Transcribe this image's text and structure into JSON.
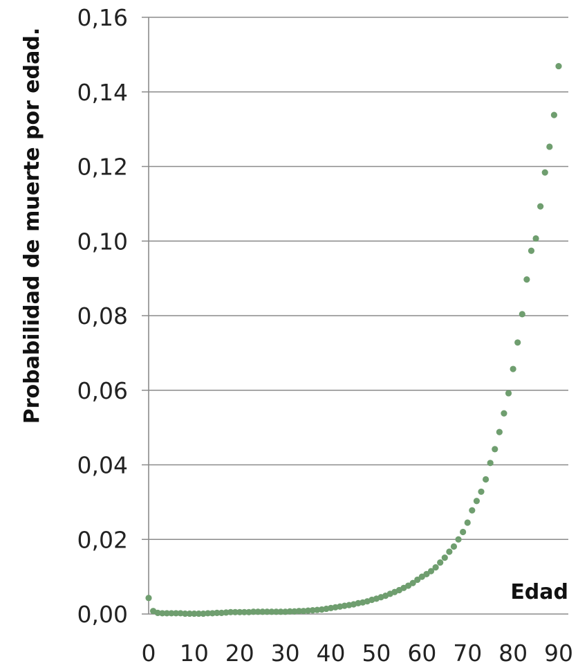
{
  "chart_data": {
    "type": "scatter",
    "title": "",
    "xlabel": "Edad",
    "ylabel": "Probabilidad de muerte por edad.",
    "xlim": [
      0,
      90
    ],
    "ylim": [
      0,
      0.16
    ],
    "grid": true,
    "marker_color": "#6f9e6f",
    "y_ticks": [
      {
        "value": 0.0,
        "label": "0,00"
      },
      {
        "value": 0.02,
        "label": "0,02"
      },
      {
        "value": 0.04,
        "label": "0,04"
      },
      {
        "value": 0.06,
        "label": "0,06"
      },
      {
        "value": 0.08,
        "label": "0,08"
      },
      {
        "value": 0.1,
        "label": "0,10"
      },
      {
        "value": 0.12,
        "label": "0,12"
      },
      {
        "value": 0.14,
        "label": "0,14"
      },
      {
        "value": 0.16,
        "label": "0,16"
      }
    ],
    "x_ticks": [
      {
        "value": 0,
        "label": "0"
      },
      {
        "value": 10,
        "label": "10"
      },
      {
        "value": 20,
        "label": "20"
      },
      {
        "value": 30,
        "label": "30"
      },
      {
        "value": 40,
        "label": "40"
      },
      {
        "value": 50,
        "label": "50"
      },
      {
        "value": 60,
        "label": "60"
      },
      {
        "value": 70,
        "label": "70"
      },
      {
        "value": 80,
        "label": "80"
      },
      {
        "value": 90,
        "label": "90"
      }
    ],
    "x": [
      0,
      1,
      2,
      3,
      4,
      5,
      6,
      7,
      8,
      9,
      10,
      11,
      12,
      13,
      14,
      15,
      16,
      17,
      18,
      19,
      20,
      21,
      22,
      23,
      24,
      25,
      26,
      27,
      28,
      29,
      30,
      31,
      32,
      33,
      34,
      35,
      36,
      37,
      38,
      39,
      40,
      41,
      42,
      43,
      44,
      45,
      46,
      47,
      48,
      49,
      50,
      51,
      52,
      53,
      54,
      55,
      56,
      57,
      58,
      59,
      60,
      61,
      62,
      63,
      64,
      65,
      66,
      67,
      68,
      69,
      70,
      71,
      72,
      73,
      74,
      75,
      76,
      77,
      78,
      79,
      80,
      81,
      82,
      83,
      84,
      85,
      86,
      87,
      88,
      89,
      90
    ],
    "values": [
      0.0043,
      0.0008,
      0.0003,
      0.0002,
      0.0002,
      0.0002,
      0.0002,
      0.0002,
      0.0001,
      0.0001,
      0.0001,
      0.0001,
      0.0001,
      0.0002,
      0.0002,
      0.0003,
      0.0003,
      0.0004,
      0.0005,
      0.0005,
      0.0005,
      0.0005,
      0.0005,
      0.0006,
      0.0006,
      0.0006,
      0.0006,
      0.0006,
      0.0006,
      0.0006,
      0.0006,
      0.0007,
      0.0007,
      0.0008,
      0.0008,
      0.0009,
      0.001,
      0.0011,
      0.0012,
      0.0014,
      0.0016,
      0.0018,
      0.002,
      0.0022,
      0.0024,
      0.0026,
      0.0029,
      0.0031,
      0.0034,
      0.0038,
      0.0041,
      0.0045,
      0.0049,
      0.0054,
      0.0059,
      0.0064,
      0.007,
      0.0076,
      0.0083,
      0.0092,
      0.01,
      0.0107,
      0.0115,
      0.0125,
      0.0138,
      0.0151,
      0.0167,
      0.0181,
      0.02,
      0.022,
      0.0245,
      0.0278,
      0.0303,
      0.0328,
      0.0361,
      0.0405,
      0.0442,
      0.0488,
      0.0538,
      0.0592,
      0.0657,
      0.0728,
      0.0804,
      0.0897,
      0.0974,
      0.1007,
      0.1093,
      0.1184,
      0.1253,
      0.1338,
      0.1469
    ]
  }
}
